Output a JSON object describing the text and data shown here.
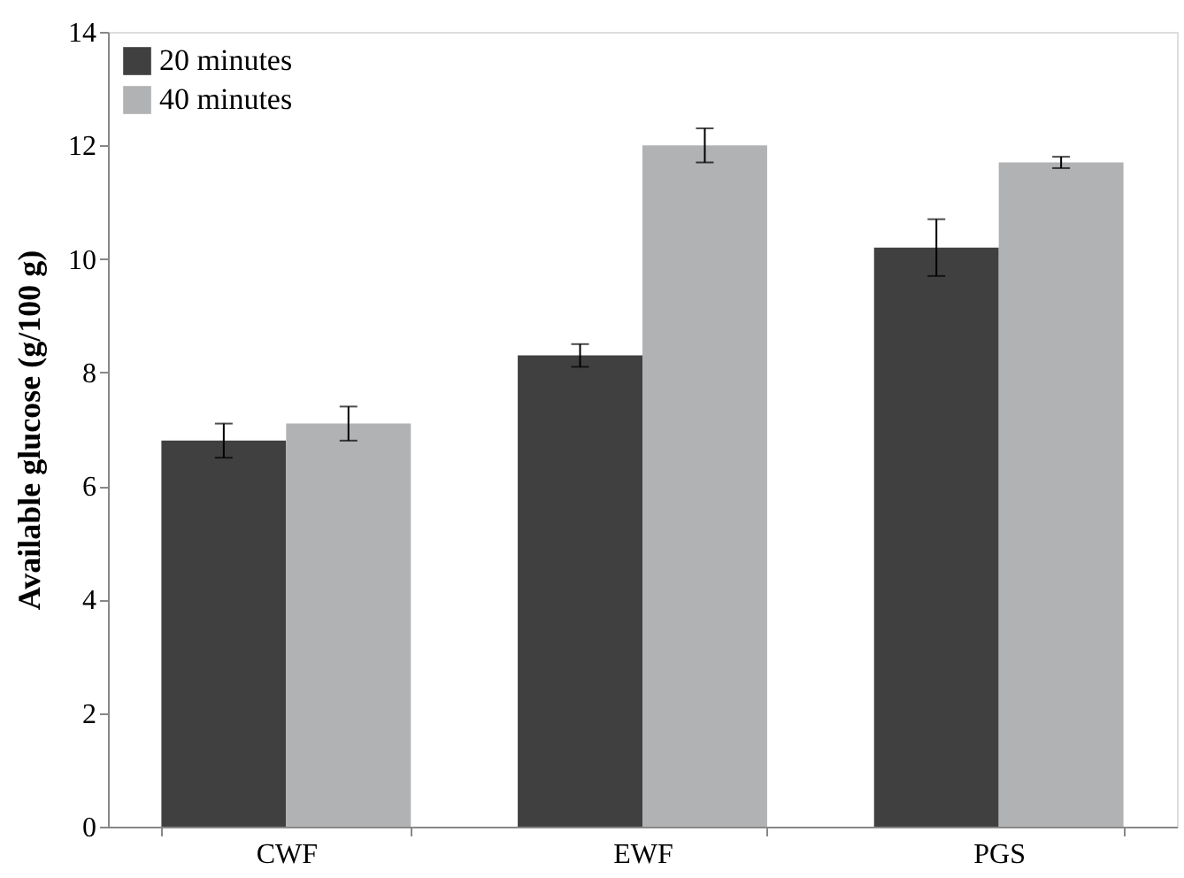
{
  "chart_data": {
    "type": "bar",
    "ylabel": "Available glucose (g/100 g)",
    "categories": [
      "CWF",
      "EWF",
      "PGS"
    ],
    "series": [
      {
        "name": "20 minutes",
        "color": "#404040",
        "values": [
          6.8,
          8.3,
          10.2
        ],
        "errors": [
          0.3,
          0.2,
          0.5
        ]
      },
      {
        "name": "40 minutes",
        "color": "#b1b2b4",
        "values": [
          7.1,
          12.0,
          11.7
        ],
        "errors": [
          0.3,
          0.3,
          0.1
        ]
      }
    ],
    "ylim": [
      0,
      14
    ],
    "yticks": [
      0,
      2,
      4,
      6,
      8,
      10,
      12,
      14
    ],
    "grid": false,
    "legend": "top left"
  }
}
